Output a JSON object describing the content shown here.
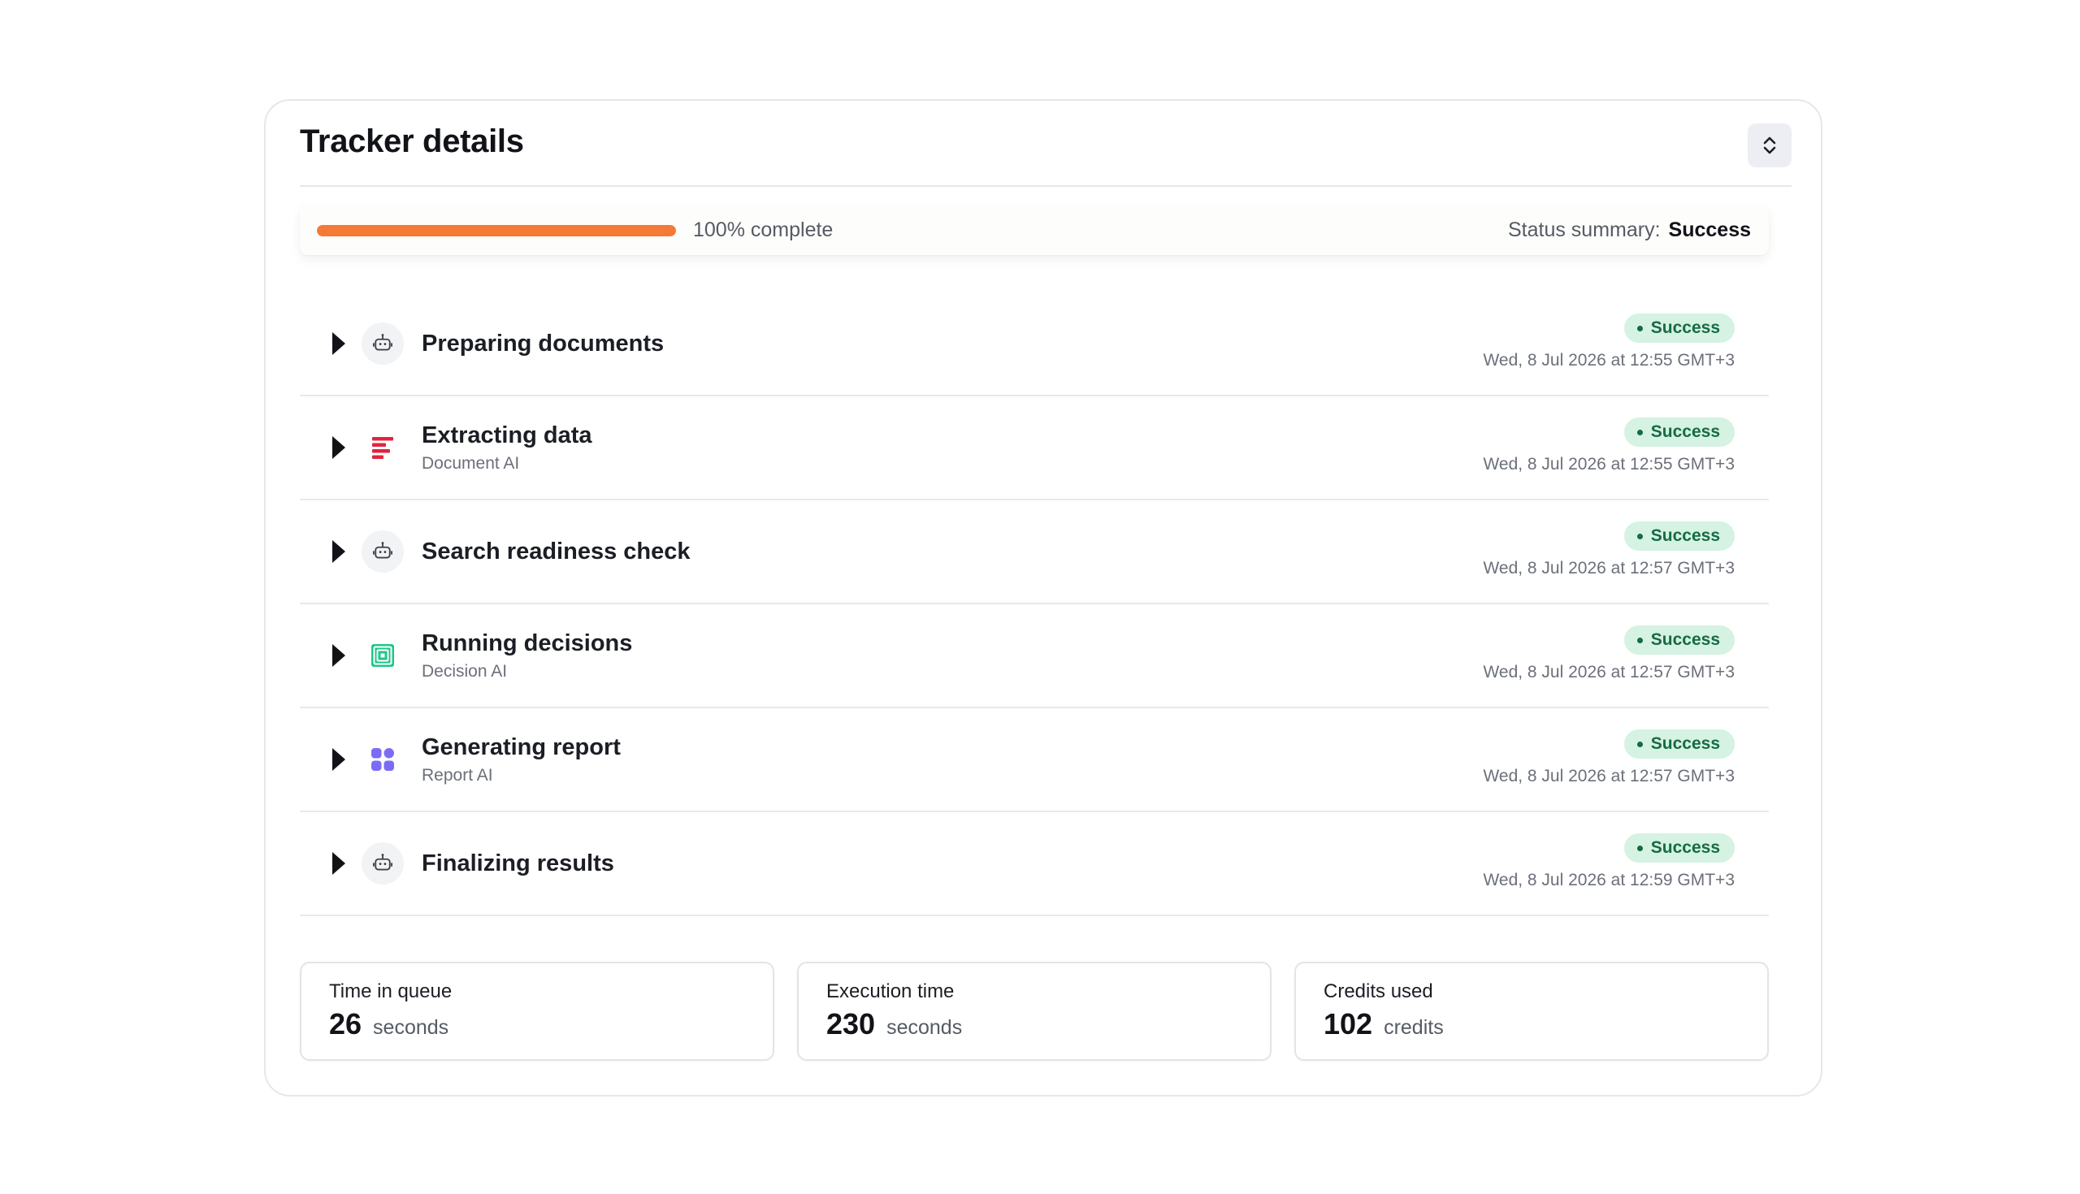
{
  "header": {
    "title": "Tracker details",
    "toggle_icon": "chevron-up-down-icon"
  },
  "progress": {
    "percent": 100,
    "label": "100% complete",
    "status_label": "Status summary:",
    "status_value": "Success",
    "fill_color": "#f47a35"
  },
  "steps": [
    {
      "title": "Preparing documents",
      "subtitle": "",
      "icon": "robot-icon",
      "status": "Success",
      "timestamp": "Wed, 8 Jul 2026 at 12:55 GMT+3"
    },
    {
      "title": "Extracting data",
      "subtitle": "Document AI",
      "icon": "document-ai-icon",
      "status": "Success",
      "timestamp": "Wed, 8 Jul 2026 at 12:55 GMT+3"
    },
    {
      "title": "Search readiness check",
      "subtitle": "",
      "icon": "robot-icon",
      "status": "Success",
      "timestamp": "Wed, 8 Jul 2026 at 12:57 GMT+3"
    },
    {
      "title": "Running decisions",
      "subtitle": "Decision AI",
      "icon": "decision-ai-icon",
      "status": "Success",
      "timestamp": "Wed, 8 Jul 2026 at 12:57 GMT+3"
    },
    {
      "title": "Generating report",
      "subtitle": "Report AI",
      "icon": "report-ai-icon",
      "status": "Success",
      "timestamp": "Wed, 8 Jul 2026 at 12:57 GMT+3"
    },
    {
      "title": "Finalizing results",
      "subtitle": "",
      "icon": "robot-icon",
      "status": "Success",
      "timestamp": "Wed, 8 Jul 2026 at 12:59 GMT+3"
    }
  ],
  "stats": [
    {
      "label": "Time in queue",
      "value": "26",
      "unit": "seconds"
    },
    {
      "label": "Execution time",
      "value": "230",
      "unit": "seconds"
    },
    {
      "label": "Credits used",
      "value": "102",
      "unit": "credits"
    }
  ],
  "colors": {
    "accent_orange": "#f47a35",
    "success_bg": "#d5f2e3",
    "success_text": "#166b43",
    "document_ai": "#e0243e",
    "decision_ai": "#22c58a",
    "report_ai": "#7b6cf6"
  }
}
